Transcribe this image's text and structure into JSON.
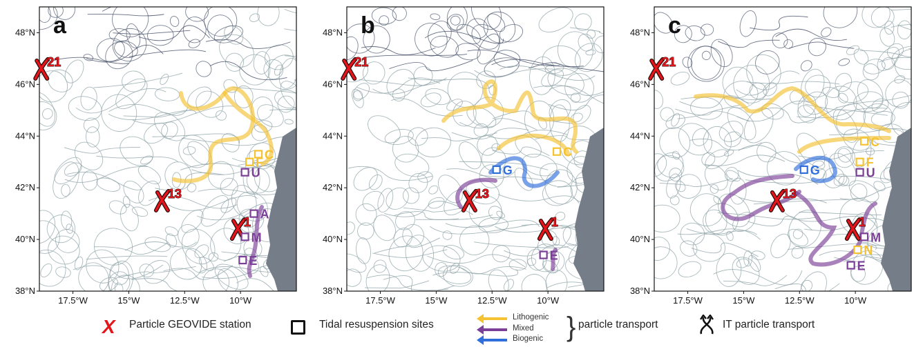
{
  "chart_data": [
    {
      "type": "map",
      "panel_label": "a",
      "xticks": [
        "17.5°W",
        "15°W",
        "12.5°W",
        "10°W"
      ],
      "yticks": [
        "38°N",
        "40°N",
        "42°N",
        "44°N",
        "46°N",
        "48°N"
      ],
      "xlim": [
        -19,
        -7.5
      ],
      "ylim": [
        38,
        49
      ],
      "stations": [
        {
          "label": "21",
          "lon": -18.9,
          "lat": 46.6
        },
        {
          "label": "13",
          "lon": -13.5,
          "lat": 41.5
        },
        {
          "label": "1",
          "lon": -10.1,
          "lat": 40.4
        }
      ],
      "sites": [
        {
          "label": "C",
          "lon": -9.2,
          "lat": 43.3,
          "type": "Lithogenic"
        },
        {
          "label": "F",
          "lon": -9.6,
          "lat": 43.0,
          "type": "Lithogenic"
        },
        {
          "label": "U",
          "lon": -9.8,
          "lat": 42.6,
          "type": "Mixed"
        },
        {
          "label": "A",
          "lon": -9.4,
          "lat": 41.0,
          "type": "Mixed"
        },
        {
          "label": "M",
          "lon": -9.8,
          "lat": 40.1,
          "type": "Mixed"
        },
        {
          "label": "E",
          "lon": -9.9,
          "lat": 39.2,
          "type": "Mixed"
        }
      ]
    },
    {
      "type": "map",
      "panel_label": "b",
      "xticks": [
        "17.5°W",
        "15°W",
        "12.5°W",
        "10°W"
      ],
      "yticks": [
        "38°N",
        "40°N",
        "42°N",
        "44°N",
        "46°N",
        "48°N"
      ],
      "xlim": [
        -19,
        -7.5
      ],
      "ylim": [
        38,
        49
      ],
      "stations": [
        {
          "label": "21",
          "lon": -18.9,
          "lat": 46.6
        },
        {
          "label": "13",
          "lon": -13.5,
          "lat": 41.5
        },
        {
          "label": "1",
          "lon": -10.1,
          "lat": 40.4
        }
      ],
      "sites": [
        {
          "label": "G",
          "lon": -12.3,
          "lat": 42.7,
          "type": "Biogenic"
        },
        {
          "label": "C",
          "lon": -9.6,
          "lat": 43.4,
          "type": "Lithogenic"
        },
        {
          "label": "E",
          "lon": -10.2,
          "lat": 39.4,
          "type": "Mixed"
        }
      ]
    },
    {
      "type": "map",
      "panel_label": "c",
      "xticks": [
        "17.5°W",
        "15°W",
        "12.5°W",
        "10°W"
      ],
      "yticks": [
        "38°N",
        "40°N",
        "42°N",
        "44°N",
        "46°N",
        "48°N"
      ],
      "xlim": [
        -19,
        -7.5
      ],
      "ylim": [
        38,
        49
      ],
      "stations": [
        {
          "label": "21",
          "lon": -18.9,
          "lat": 46.6
        },
        {
          "label": "13",
          "lon": -13.5,
          "lat": 41.5
        },
        {
          "label": "1",
          "lon": -10.1,
          "lat": 40.4
        }
      ],
      "sites": [
        {
          "label": "G",
          "lon": -12.3,
          "lat": 42.7,
          "type": "Biogenic"
        },
        {
          "label": "C",
          "lon": -9.6,
          "lat": 43.8,
          "type": "Lithogenic"
        },
        {
          "label": "F",
          "lon": -9.8,
          "lat": 43.0,
          "type": "Lithogenic"
        },
        {
          "label": "U",
          "lon": -9.8,
          "lat": 42.6,
          "type": "Mixed"
        },
        {
          "label": "M",
          "lon": -9.6,
          "lat": 40.1,
          "type": "Mixed"
        },
        {
          "label": "N",
          "lon": -9.9,
          "lat": 39.6,
          "type": "Lithogenic"
        },
        {
          "label": "E",
          "lon": -10.2,
          "lat": 39.0,
          "type": "Mixed"
        }
      ]
    }
  ],
  "legend": {
    "station_label": "Particle GEOVIDE station",
    "sites_label": "Tidal resuspension sites",
    "lithogenic_label": "Lithogenic",
    "mixed_label": "Mixed",
    "biogenic_label": "Biogenic",
    "transport_label": "particle transport",
    "it_label": "IT particle transport"
  },
  "colors": {
    "lithogenic": "#f5c232",
    "mixed": "#7b3f98",
    "biogenic": "#2f6fdc",
    "station": "#e4151b",
    "land": "#757d89",
    "streamline": "#8fa3a7"
  }
}
